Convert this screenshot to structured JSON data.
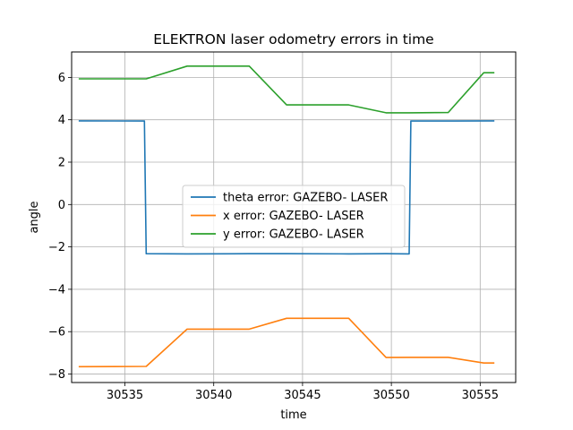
{
  "chart_data": {
    "type": "line",
    "title": "ELEKTRON laser odometry errors in time",
    "xlabel": "time",
    "ylabel": "angle",
    "xlim": [
      30532.0,
      30557.0
    ],
    "ylim": [
      -8.4,
      7.2
    ],
    "xticks": [
      30535,
      30540,
      30545,
      30550,
      30555
    ],
    "yticks": [
      -8,
      -6,
      -4,
      -2,
      0,
      2,
      4,
      6
    ],
    "grid": true,
    "legend_position": "center",
    "series": [
      {
        "name": "theta error: GAZEBO- LASER",
        "color": "#1f77b4",
        "x": [
          30532.4,
          30536.1,
          30536.2,
          30538.5,
          30542.0,
          30544.1,
          30547.6,
          30549.7,
          30551.0,
          30551.1,
          30553.2,
          30555.8
        ],
        "y": [
          3.95,
          3.94,
          -2.32,
          -2.33,
          -2.32,
          -2.32,
          -2.33,
          -2.32,
          -2.33,
          3.94,
          3.94,
          3.95
        ]
      },
      {
        "name": "x error: GAZEBO- LASER",
        "color": "#ff7f0e",
        "x": [
          30532.4,
          30536.2,
          30538.5,
          30542.0,
          30544.1,
          30547.6,
          30549.7,
          30551.0,
          30553.2,
          30555.2,
          30555.8
        ],
        "y": [
          -7.65,
          -7.64,
          -5.88,
          -5.88,
          -5.37,
          -5.37,
          -7.22,
          -7.21,
          -7.21,
          -7.48,
          -7.48
        ]
      },
      {
        "name": "y error: GAZEBO- LASER",
        "color": "#2ca02c",
        "x": [
          30532.4,
          30536.2,
          30538.5,
          30542.0,
          30544.1,
          30547.6,
          30549.7,
          30551.0,
          30553.2,
          30555.2,
          30555.8
        ],
        "y": [
          5.93,
          5.93,
          6.53,
          6.53,
          4.7,
          4.7,
          4.33,
          4.33,
          4.34,
          6.22,
          6.22
        ]
      }
    ]
  }
}
